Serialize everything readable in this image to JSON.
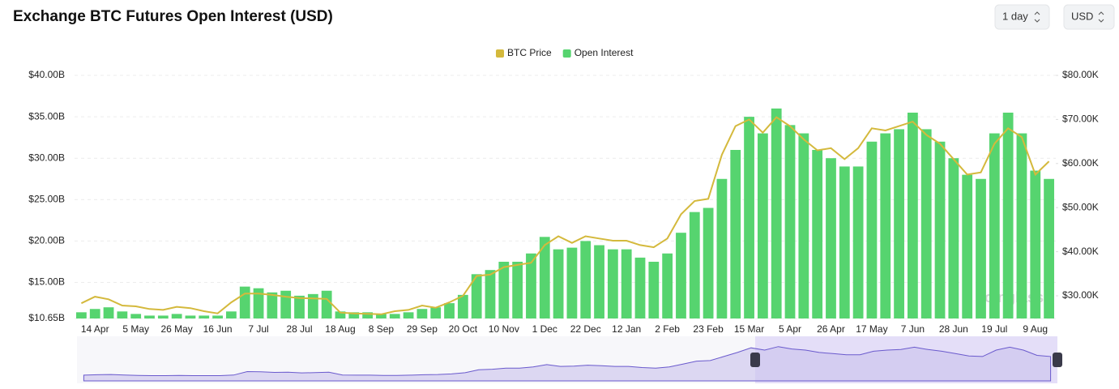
{
  "controls": {
    "interval": "1 day",
    "currency": "USD"
  },
  "chart_data": {
    "type": "bar",
    "title": "Exchange BTC Futures Open Interest (USD)",
    "watermark": "coinglass",
    "categories": [
      null,
      "14 Apr",
      null,
      null,
      "5 May",
      null,
      null,
      "26 May",
      null,
      null,
      "16 Jun",
      null,
      null,
      "7 Jul",
      null,
      null,
      "28 Jul",
      null,
      null,
      "18 Aug",
      null,
      null,
      "8 Sep",
      null,
      null,
      "29 Sep",
      null,
      null,
      "20 Oct",
      null,
      null,
      "10 Nov",
      null,
      null,
      "1 Dec",
      null,
      null,
      "22 Dec",
      null,
      null,
      "12 Jan",
      null,
      null,
      "2 Feb",
      null,
      null,
      "23 Feb",
      null,
      null,
      "15 Mar",
      null,
      null,
      "5 Apr",
      null,
      null,
      "26 Apr",
      null,
      null,
      "17 May",
      null,
      null,
      "7 Jun",
      null,
      null,
      "28 Jun",
      null,
      null,
      "19 Jul",
      null,
      null,
      "9 Aug",
      null
    ],
    "series": [
      {
        "name": "BTC Price",
        "type": "line",
        "axis": "y2",
        "color": "#d4b93c",
        "values": [
          28.3,
          29.8,
          29.2,
          27.8,
          27.6,
          27.0,
          26.8,
          27.5,
          27.2,
          26.5,
          26.0,
          28.5,
          30.5,
          30.5,
          30.2,
          29.8,
          29.5,
          29.4,
          29.3,
          26.2,
          26.0,
          25.9,
          25.8,
          26.5,
          26.8,
          27.8,
          27.3,
          28.5,
          30.0,
          34.5,
          34.8,
          36.5,
          37.0,
          37.5,
          41.5,
          43.5,
          42.0,
          43.5,
          43.0,
          42.5,
          42.5,
          41.5,
          41.0,
          43.0,
          48.5,
          51.5,
          52.0,
          62.0,
          68.5,
          70.0,
          67.0,
          70.5,
          68.5,
          65.5,
          63.0,
          63.5,
          61.0,
          63.5,
          68.0,
          67.5,
          68.5,
          69.5,
          66.5,
          64.5,
          61.0,
          57.5,
          58.0,
          64.5,
          68.0,
          66.0,
          57.5,
          60.5
        ]
      },
      {
        "name": "Open Interest",
        "type": "bar",
        "color": "#56d46f",
        "values": [
          11.4,
          11.8,
          12.0,
          11.5,
          11.2,
          11.0,
          11.0,
          11.2,
          11.0,
          11.0,
          11.0,
          11.5,
          14.5,
          14.3,
          13.8,
          14.0,
          13.4,
          13.6,
          14.0,
          11.5,
          11.4,
          11.4,
          11.2,
          11.2,
          11.4,
          11.8,
          12.0,
          12.5,
          13.5,
          16.0,
          16.5,
          17.5,
          17.5,
          18.5,
          20.5,
          19.0,
          19.2,
          20.0,
          19.5,
          19.0,
          19.0,
          18.0,
          17.5,
          18.5,
          21.0,
          23.5,
          24.0,
          27.5,
          31.0,
          35.0,
          33.0,
          36.0,
          34.0,
          33.0,
          31.0,
          30.0,
          29.0,
          29.0,
          32.0,
          33.0,
          33.5,
          35.5,
          33.5,
          32.0,
          30.0,
          28.0,
          27.5,
          33.0,
          35.5,
          33.0,
          28.5,
          27.5
        ]
      }
    ],
    "ylim": [
      10.65,
      40
    ],
    "yticks": [
      {
        "value": 10.65,
        "label": "$10.65B"
      },
      {
        "value": 15,
        "label": "$15.00B"
      },
      {
        "value": 20,
        "label": "$20.00B"
      },
      {
        "value": 25,
        "label": "$25.00B"
      },
      {
        "value": 30,
        "label": "$30.00B"
      },
      {
        "value": 35,
        "label": "$35.00B"
      },
      {
        "value": 40,
        "label": "$40.00B"
      }
    ],
    "y2lim": [
      24.85,
      80
    ],
    "y2ticks": [
      {
        "value": 30,
        "label": "$30.00K"
      },
      {
        "value": 40,
        "label": "$40.00K"
      },
      {
        "value": 50,
        "label": "$50.00K"
      },
      {
        "value": 60,
        "label": "$60.00K"
      },
      {
        "value": 70,
        "label": "$70.00K"
      },
      {
        "value": 80,
        "label": "$80.00K"
      }
    ],
    "grid": true,
    "legend": "top"
  }
}
